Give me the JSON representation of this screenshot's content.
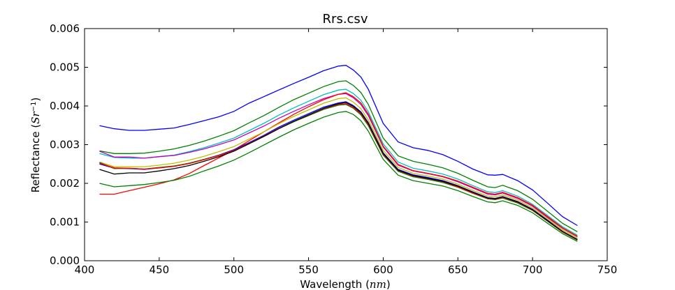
{
  "chart_data": {
    "type": "line",
    "title": "Rrs.csv",
    "xlabel": "Wavelength",
    "xlabel_unit": "nm",
    "ylabel": "Reflectance",
    "ylabel_unit": "Sr",
    "ylabel_exponent": "−1",
    "xlim": [
      400,
      750
    ],
    "ylim": [
      0,
      0.006
    ],
    "xticks": [
      400,
      450,
      500,
      550,
      600,
      650,
      700,
      750
    ],
    "xtick_labels": [
      "400",
      "450",
      "500",
      "550",
      "600",
      "650",
      "700",
      "750"
    ],
    "yticks": [
      0,
      0.001,
      0.002,
      0.003,
      0.004,
      0.005,
      0.006
    ],
    "ytick_labels": [
      "0.000",
      "0.001",
      "0.002",
      "0.003",
      "0.004",
      "0.005",
      "0.006"
    ],
    "grid": false,
    "legend": false,
    "x": [
      410,
      420,
      430,
      440,
      450,
      460,
      470,
      480,
      490,
      500,
      510,
      520,
      530,
      540,
      550,
      560,
      570,
      575,
      580,
      585,
      590,
      600,
      610,
      620,
      630,
      640,
      650,
      660,
      670,
      675,
      680,
      690,
      700,
      710,
      720,
      730
    ],
    "series": [
      {
        "color": "#0000ff",
        "values": [
          0.00349,
          0.00341,
          0.00337,
          0.00337,
          0.0034,
          0.00343,
          0.00352,
          0.00362,
          0.00372,
          0.00386,
          0.00407,
          0.00424,
          0.00441,
          0.00458,
          0.00474,
          0.00491,
          0.00503,
          0.00505,
          0.00493,
          0.00475,
          0.00443,
          0.00355,
          0.00307,
          0.00292,
          0.00285,
          0.00274,
          0.00257,
          0.00237,
          0.00222,
          0.00221,
          0.00223,
          0.00207,
          0.00183,
          0.00149,
          0.00114,
          0.00091
        ]
      },
      {
        "color": "#008000",
        "values": [
          0.00284,
          0.00277,
          0.00277,
          0.00278,
          0.00283,
          0.00289,
          0.00298,
          0.00309,
          0.00322,
          0.00336,
          0.00356,
          0.00375,
          0.00396,
          0.00416,
          0.00433,
          0.0045,
          0.00463,
          0.00465,
          0.00453,
          0.00435,
          0.00404,
          0.00317,
          0.00271,
          0.00257,
          0.00249,
          0.0024,
          0.00226,
          0.00208,
          0.00191,
          0.00189,
          0.00195,
          0.00181,
          0.00159,
          0.00128,
          0.00097,
          0.00075
        ]
      },
      {
        "color": "#00bfbf",
        "values": [
          0.00277,
          0.00267,
          0.00265,
          0.00265,
          0.00269,
          0.00273,
          0.00282,
          0.00292,
          0.00304,
          0.00317,
          0.00336,
          0.00355,
          0.00376,
          0.00395,
          0.00412,
          0.00429,
          0.00441,
          0.00443,
          0.00432,
          0.00415,
          0.00385,
          0.00302,
          0.00255,
          0.00239,
          0.00232,
          0.00224,
          0.00211,
          0.00194,
          0.00178,
          0.00176,
          0.00181,
          0.00167,
          0.00146,
          0.00117,
          0.00088,
          0.00066
        ]
      },
      {
        "color": "#bf00bf",
        "values": [
          0.00283,
          0.00268,
          0.00268,
          0.00265,
          0.00269,
          0.00272,
          0.0028,
          0.00289,
          0.003,
          0.00312,
          0.0033,
          0.00348,
          0.00368,
          0.00386,
          0.00403,
          0.00419,
          0.0043,
          0.00432,
          0.00421,
          0.00404,
          0.00375,
          0.00294,
          0.00247,
          0.00232,
          0.00225,
          0.00217,
          0.00204,
          0.00188,
          0.00172,
          0.0017,
          0.00175,
          0.00161,
          0.00141,
          0.00112,
          0.00084,
          0.00062
        ]
      },
      {
        "color": "#ff0000",
        "values": [
          0.00172,
          0.00172,
          0.00181,
          0.0019,
          0.00199,
          0.00209,
          0.00225,
          0.00246,
          0.00266,
          0.00286,
          0.0031,
          0.00333,
          0.00356,
          0.00378,
          0.00398,
          0.00416,
          0.0043,
          0.00434,
          0.00424,
          0.00408,
          0.00379,
          0.00296,
          0.00249,
          0.00233,
          0.00226,
          0.00218,
          0.00206,
          0.0019,
          0.00174,
          0.00172,
          0.00177,
          0.00163,
          0.00143,
          0.00114,
          0.00085,
          0.00063
        ]
      },
      {
        "color": "#bfbf00",
        "values": [
          0.00255,
          0.00243,
          0.00243,
          0.00243,
          0.00247,
          0.00252,
          0.0026,
          0.0027,
          0.00282,
          0.00295,
          0.00314,
          0.00333,
          0.00354,
          0.00373,
          0.0039,
          0.00407,
          0.00419,
          0.00421,
          0.0041,
          0.00393,
          0.00364,
          0.00285,
          0.00241,
          0.00226,
          0.00219,
          0.00211,
          0.00198,
          0.00182,
          0.00167,
          0.00165,
          0.0017,
          0.00157,
          0.00137,
          0.00109,
          0.0008,
          0.00059
        ]
      },
      {
        "color": "#0000ff",
        "values": [
          0.0025,
          0.00239,
          0.00238,
          0.00236,
          0.0024,
          0.00244,
          0.00252,
          0.00262,
          0.00273,
          0.00287,
          0.00305,
          0.00324,
          0.00345,
          0.00363,
          0.0038,
          0.00397,
          0.00408,
          0.00411,
          0.00401,
          0.00385,
          0.00357,
          0.00279,
          0.00236,
          0.00222,
          0.00215,
          0.00207,
          0.00194,
          0.00178,
          0.00163,
          0.00161,
          0.00166,
          0.00153,
          0.00133,
          0.00105,
          0.00076,
          0.00055
        ]
      },
      {
        "color": "#008000",
        "values": [
          0.00254,
          0.00238,
          0.00239,
          0.00237,
          0.00241,
          0.00245,
          0.00252,
          0.00262,
          0.00272,
          0.00285,
          0.00302,
          0.00321,
          0.00341,
          0.00359,
          0.00375,
          0.00391,
          0.00402,
          0.00404,
          0.00394,
          0.00377,
          0.00349,
          0.00273,
          0.00231,
          0.00217,
          0.0021,
          0.00202,
          0.0019,
          0.00174,
          0.0016,
          0.00158,
          0.00162,
          0.00149,
          0.0013,
          0.00102,
          0.00074,
          0.00053
        ]
      },
      {
        "color": "#ff0000",
        "values": [
          0.00252,
          0.0024,
          0.00239,
          0.00237,
          0.0024,
          0.00244,
          0.00251,
          0.00261,
          0.00272,
          0.00285,
          0.00303,
          0.00322,
          0.00342,
          0.0036,
          0.00376,
          0.00393,
          0.00404,
          0.00406,
          0.00396,
          0.0038,
          0.00352,
          0.00275,
          0.00233,
          0.00219,
          0.00212,
          0.00204,
          0.00191,
          0.00175,
          0.00161,
          0.00159,
          0.00164,
          0.00151,
          0.00131,
          0.00103,
          0.00075,
          0.00054
        ]
      },
      {
        "color": "#000000",
        "values": [
          0.00236,
          0.00224,
          0.00227,
          0.00227,
          0.00232,
          0.00238,
          0.00246,
          0.00257,
          0.00269,
          0.00283,
          0.00302,
          0.00321,
          0.00341,
          0.0036,
          0.00377,
          0.00394,
          0.00406,
          0.00409,
          0.00399,
          0.00383,
          0.00355,
          0.00277,
          0.00234,
          0.0022,
          0.00213,
          0.00205,
          0.00193,
          0.00177,
          0.00162,
          0.0016,
          0.00165,
          0.00152,
          0.00132,
          0.00104,
          0.00076,
          0.00055
        ]
      },
      {
        "color": "#008000",
        "values": [
          0.002,
          0.00191,
          0.00194,
          0.00197,
          0.00202,
          0.00208,
          0.00218,
          0.00232,
          0.00245,
          0.0026,
          0.00279,
          0.00299,
          0.00319,
          0.00338,
          0.00355,
          0.00371,
          0.00383,
          0.00386,
          0.00378,
          0.00362,
          0.00335,
          0.00262,
          0.00221,
          0.00207,
          0.002,
          0.00193,
          0.00181,
          0.00166,
          0.00152,
          0.0015,
          0.00155,
          0.00143,
          0.00124,
          0.00097,
          0.0007,
          0.0005
        ]
      }
    ]
  }
}
